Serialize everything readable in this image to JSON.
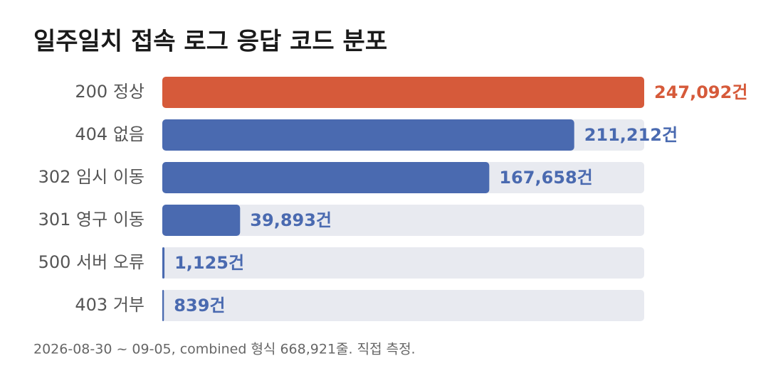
{
  "chart_data": {
    "type": "bar",
    "orientation": "horizontal",
    "title": "일주일치 접속 로그 응답 코드 분포",
    "categories": [
      "200 정상",
      "404 없음",
      "302 임시 이동",
      "301 영구 이동",
      "500 서버 오류",
      "403 거부"
    ],
    "values": [
      247092,
      211212,
      167658,
      39893,
      1125,
      839
    ],
    "value_labels": [
      "247,092건",
      "211,212건",
      "167,658건",
      "39,893건",
      "1,125건",
      "839건"
    ],
    "colors": [
      "#d65a3a",
      "#4a6ab0",
      "#4a6ab0",
      "#4a6ab0",
      "#4a6ab0",
      "#4a6ab0"
    ],
    "track_color": "#e8eaf0",
    "xlim": [
      0,
      247092
    ],
    "note": "2026-08-30 ~ 09-05, combined 형식 668,921줄. 직접 측정."
  }
}
